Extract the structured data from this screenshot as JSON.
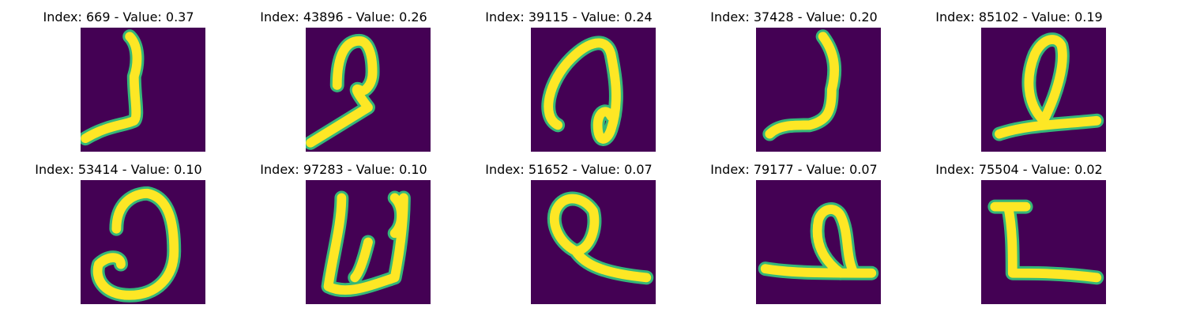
{
  "figure": {
    "colormap": "viridis",
    "background_color": "#440154",
    "foreground_color": "#fde725",
    "edge_color": "#35b779",
    "panels": [
      {
        "title": "Index: 669 - Value: 0.37",
        "glyph": "hook-left-base"
      },
      {
        "title": "Index: 43896 - Value: 0.26",
        "glyph": "loop-with-long-tail"
      },
      {
        "title": "Index: 39115 - Value: 0.24",
        "glyph": "curled-spiral"
      },
      {
        "title": "Index: 37428 - Value: 0.20",
        "glyph": "thick-hook"
      },
      {
        "title": "Index: 85102 - Value: 0.19",
        "glyph": "loop-on-baseline"
      },
      {
        "title": "Index: 53414 - Value: 0.10",
        "glyph": "open-c-curl"
      },
      {
        "title": "Index: 97283 - Value: 0.10",
        "glyph": "w-shape"
      },
      {
        "title": "Index: 51652 - Value: 0.07",
        "glyph": "round-loop-tail"
      },
      {
        "title": "Index: 79177 - Value: 0.07",
        "glyph": "loop-on-long-baseline"
      },
      {
        "title": "Index: 75504 - Value: 0.02",
        "glyph": "bracket-shape"
      }
    ]
  }
}
